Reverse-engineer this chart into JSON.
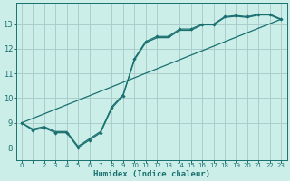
{
  "xlabel": "Humidex (Indice chaleur)",
  "bg_color": "#cceee8",
  "grid_color": "#aacccc",
  "line_color": "#1a7070",
  "xlim": [
    -0.5,
    23.5
  ],
  "ylim": [
    7.5,
    13.85
  ],
  "xticks": [
    0,
    1,
    2,
    3,
    4,
    5,
    6,
    7,
    8,
    9,
    10,
    11,
    12,
    13,
    14,
    15,
    16,
    17,
    18,
    19,
    20,
    21,
    22,
    23
  ],
  "yticks": [
    8,
    9,
    10,
    11,
    12,
    13
  ],
  "line1_x": [
    0,
    1,
    2,
    3,
    4,
    5,
    6,
    7,
    8,
    9,
    10,
    11,
    12,
    13,
    14,
    15,
    16,
    17,
    18,
    19,
    20,
    21,
    22,
    23
  ],
  "line1_y": [
    9.0,
    8.7,
    8.8,
    8.6,
    8.6,
    8.0,
    8.3,
    8.6,
    9.6,
    10.1,
    11.6,
    12.3,
    12.5,
    12.5,
    12.8,
    12.8,
    13.0,
    13.0,
    13.3,
    13.35,
    13.3,
    13.4,
    13.4,
    13.2
  ],
  "line2_x": [
    0,
    1,
    2,
    3,
    4,
    5,
    6,
    7,
    8,
    9,
    10,
    11,
    12,
    13,
    14,
    15,
    16,
    17,
    18,
    19,
    20,
    21,
    22,
    23
  ],
  "line2_y": [
    9.0,
    8.75,
    8.85,
    8.65,
    8.65,
    8.05,
    8.35,
    8.65,
    9.65,
    10.15,
    11.55,
    12.25,
    12.45,
    12.45,
    12.75,
    12.75,
    12.97,
    12.97,
    13.27,
    13.32,
    13.27,
    13.37,
    13.37,
    13.17
  ],
  "line3_x": [
    0,
    23
  ],
  "line3_y": [
    9.0,
    13.2
  ]
}
